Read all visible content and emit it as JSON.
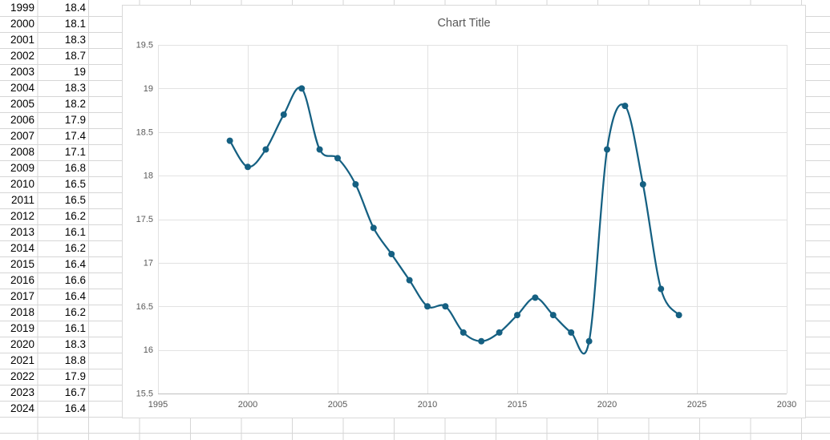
{
  "sheet": {
    "rows": [
      {
        "year": "1999",
        "value": "18.4"
      },
      {
        "year": "2000",
        "value": "18.1"
      },
      {
        "year": "2001",
        "value": "18.3"
      },
      {
        "year": "2002",
        "value": "18.7"
      },
      {
        "year": "2003",
        "value": "19"
      },
      {
        "year": "2004",
        "value": "18.3"
      },
      {
        "year": "2005",
        "value": "18.2"
      },
      {
        "year": "2006",
        "value": "17.9"
      },
      {
        "year": "2007",
        "value": "17.4"
      },
      {
        "year": "2008",
        "value": "17.1"
      },
      {
        "year": "2009",
        "value": "16.8"
      },
      {
        "year": "2010",
        "value": "16.5"
      },
      {
        "year": "2011",
        "value": "16.5"
      },
      {
        "year": "2012",
        "value": "16.2"
      },
      {
        "year": "2013",
        "value": "16.1"
      },
      {
        "year": "2014",
        "value": "16.2"
      },
      {
        "year": "2015",
        "value": "16.4"
      },
      {
        "year": "2016",
        "value": "16.6"
      },
      {
        "year": "2017",
        "value": "16.4"
      },
      {
        "year": "2018",
        "value": "16.2"
      },
      {
        "year": "2019",
        "value": "16.1"
      },
      {
        "year": "2020",
        "value": "18.3"
      },
      {
        "year": "2021",
        "value": "18.8"
      },
      {
        "year": "2022",
        "value": "17.9"
      },
      {
        "year": "2023",
        "value": "16.7"
      },
      {
        "year": "2024",
        "value": "16.4"
      }
    ]
  },
  "chart": {
    "title": "Chart Title",
    "colors": {
      "line": "#156082",
      "marker": "#156082",
      "gridline": "#e2e2e2",
      "axis_line": "#bfbfbf",
      "tick_label": "#595959",
      "title": "#595959",
      "frame_border": "#d9d9d9"
    }
  },
  "chart_data": {
    "type": "line",
    "smooth": true,
    "markers": true,
    "title": "Chart Title",
    "x": [
      1999,
      2000,
      2001,
      2002,
      2003,
      2004,
      2005,
      2006,
      2007,
      2008,
      2009,
      2010,
      2011,
      2012,
      2013,
      2014,
      2015,
      2016,
      2017,
      2018,
      2019,
      2020,
      2021,
      2022,
      2023,
      2024
    ],
    "y": [
      18.4,
      18.1,
      18.3,
      18.7,
      19,
      18.3,
      18.2,
      17.9,
      17.4,
      17.1,
      16.8,
      16.5,
      16.5,
      16.2,
      16.1,
      16.2,
      16.4,
      16.6,
      16.4,
      16.2,
      16.1,
      18.3,
      18.8,
      17.9,
      16.7,
      16.4
    ],
    "xlim": [
      1995,
      2030
    ],
    "ylim": [
      15.5,
      19.5
    ],
    "x_tick_labels": [
      "1995",
      "2000",
      "2005",
      "2010",
      "2015",
      "2020",
      "2025",
      "2030"
    ],
    "y_tick_labels": [
      "15.5",
      "16",
      "16.5",
      "17",
      "17.5",
      "18",
      "18.5",
      "19",
      "19.5"
    ],
    "x_tick_values": [
      1995,
      2000,
      2005,
      2010,
      2015,
      2020,
      2025,
      2030
    ],
    "y_tick_values": [
      15.5,
      16,
      16.5,
      17,
      17.5,
      18,
      18.5,
      19,
      19.5
    ],
    "grid": true,
    "legend": false,
    "xlabel": "",
    "ylabel": ""
  }
}
